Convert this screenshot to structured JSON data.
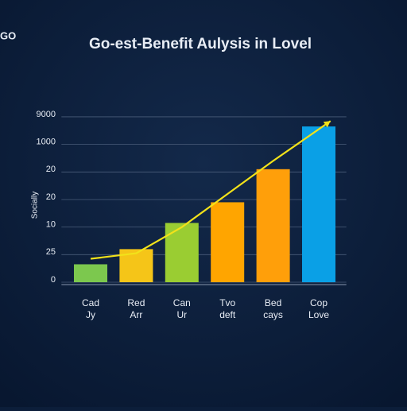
{
  "brand": "GO",
  "chart_data": {
    "type": "bar",
    "title": "Go-est-Benefit Aulysis in Lovel",
    "y_label": "Socially",
    "categories": [
      [
        "Cad",
        "Jy"
      ],
      [
        "Red",
        "Arr"
      ],
      [
        "Can",
        "Ur"
      ],
      [
        "Tvo",
        "deft"
      ],
      [
        "Bed",
        "cays"
      ],
      [
        "Cop",
        "Love"
      ]
    ],
    "values": [
      0.65,
      1.2,
      2.15,
      2.9,
      4.1,
      5.65
    ],
    "colors": [
      "#7cc84e",
      "#f5c518",
      "#9acd32",
      "#ffa500",
      "#ff9f0a",
      "#0aa0e6"
    ],
    "trend": {
      "type": "line",
      "color": "#f2e21a",
      "values": [
        0.85,
        1.05,
        2.0,
        3.2,
        4.4,
        5.55
      ]
    },
    "ylim": [
      0,
      6.2
    ],
    "yticks": [
      0,
      {
        "value": 1,
        "label": "25"
      },
      {
        "value": 2,
        "label": "10"
      },
      {
        "value": 3,
        "label": "20"
      },
      {
        "value": 4,
        "label": "20"
      },
      {
        "value": 5,
        "label": "1000"
      },
      {
        "value": 6,
        "label": "9000"
      }
    ],
    "grid": true
  }
}
